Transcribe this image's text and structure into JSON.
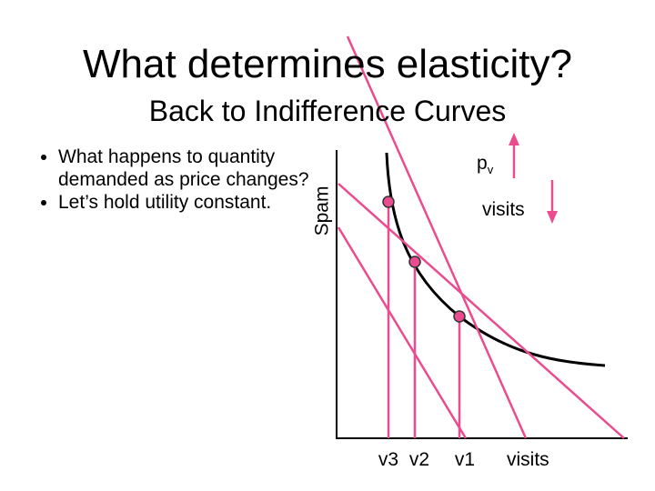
{
  "header": {
    "title": "What determines elasticity?",
    "subtitle": "Back to Indifference Curves"
  },
  "bullets": [
    "What happens to quantity demanded as price changes?",
    "Let’s hold utility constant."
  ],
  "diagram": {
    "y_axis_label": "Spam",
    "price_label": {
      "main": "p",
      "sub": "v"
    },
    "arrow_label": "visits",
    "x_points": [
      "v3",
      "v2",
      "v1"
    ],
    "x_axis_label": "visits"
  }
}
